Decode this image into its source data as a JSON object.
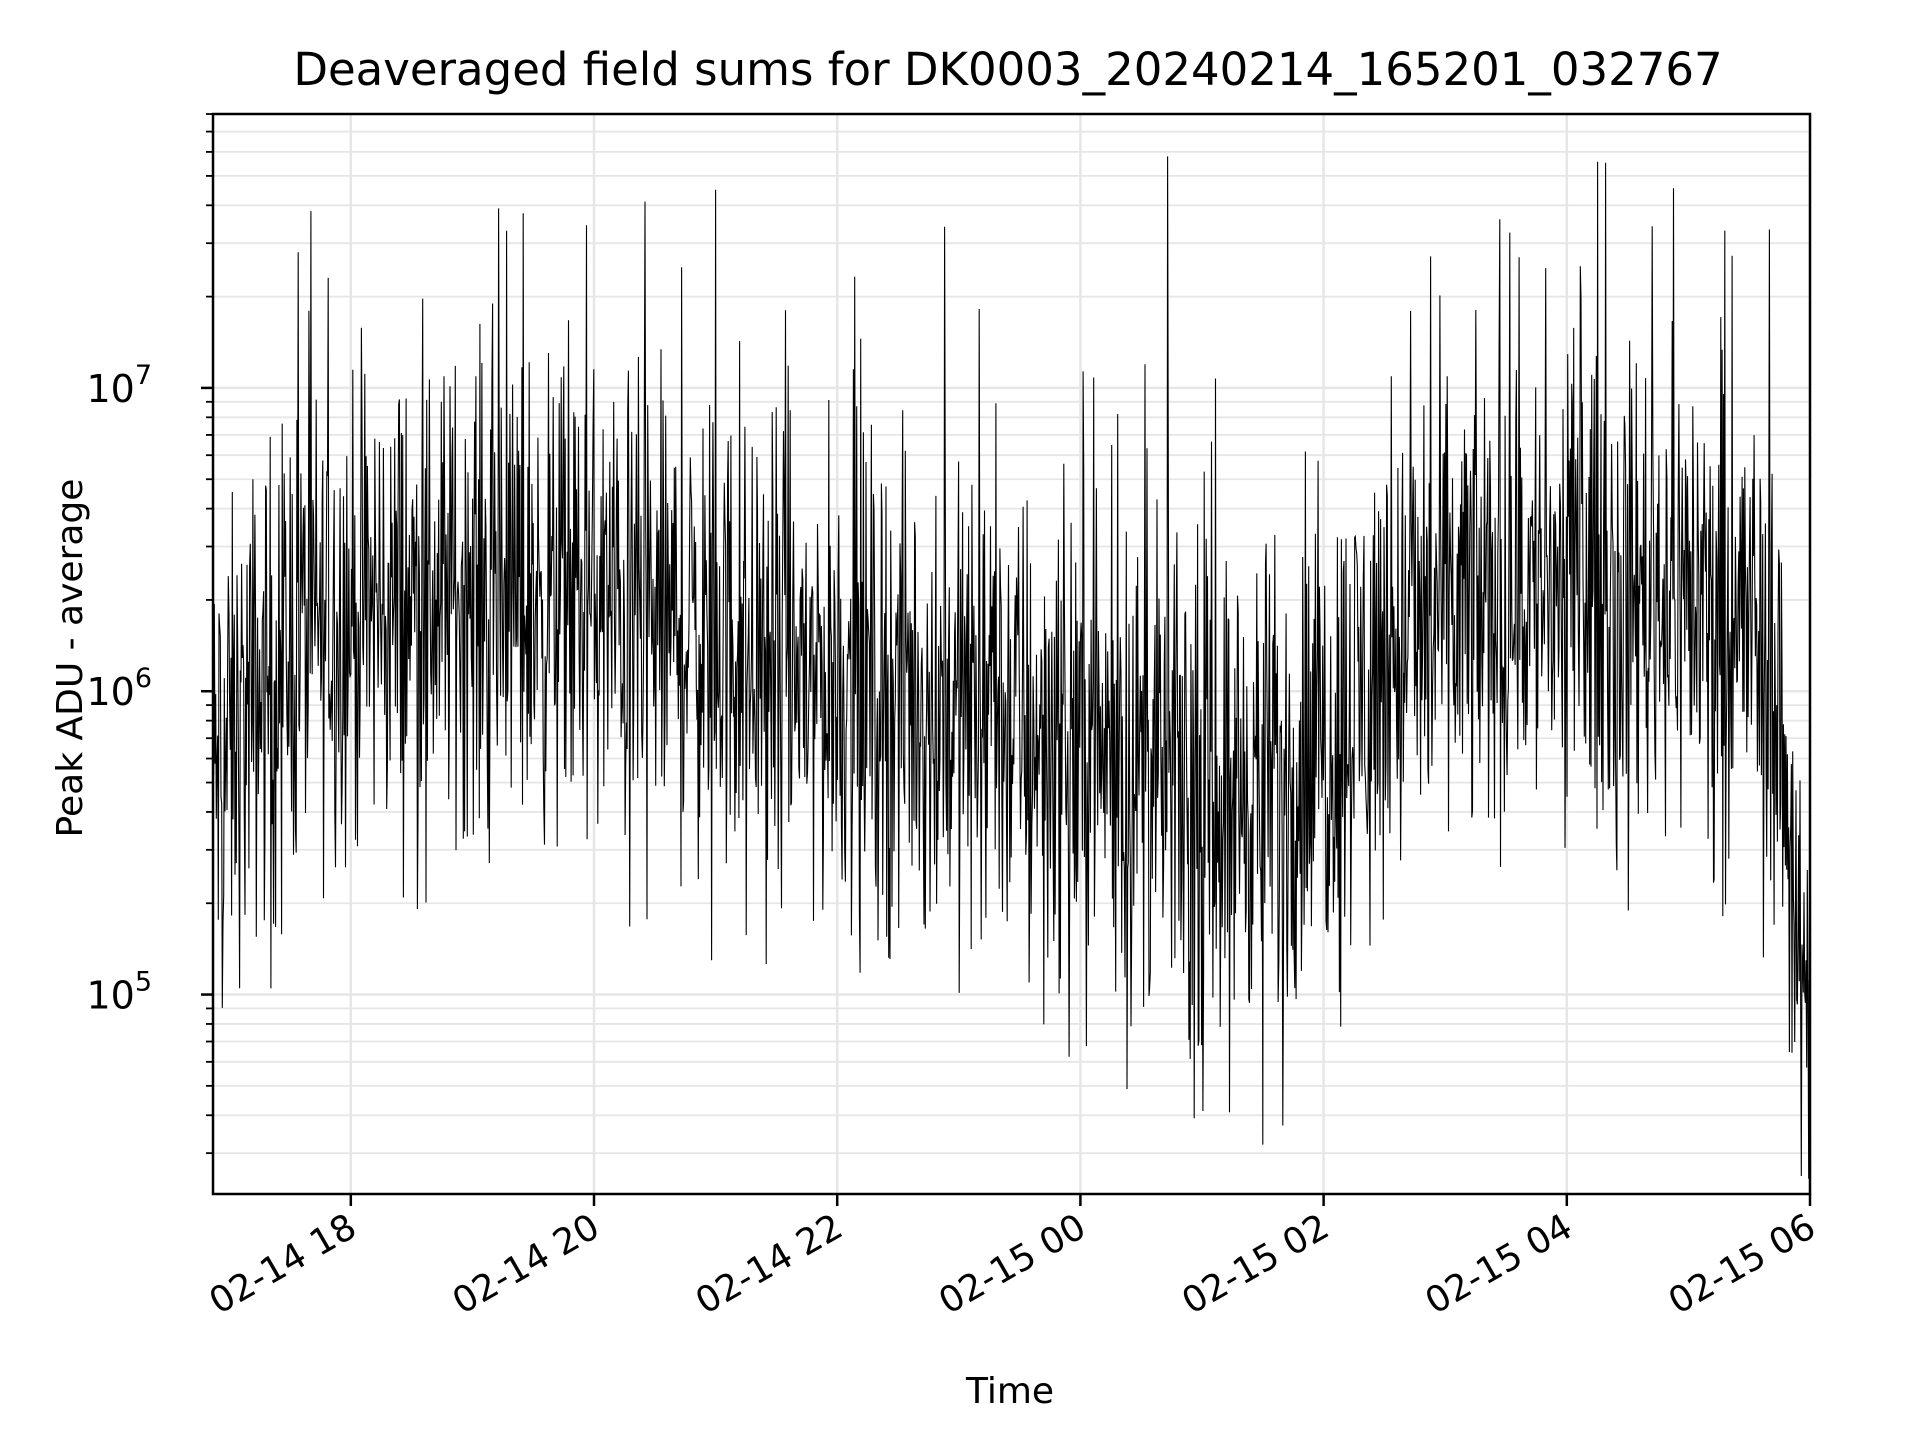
{
  "chart_data": {
    "type": "line",
    "title": "Deaveraged field sums for DK0003_20240214_165201_032767",
    "xlabel": "Time",
    "ylabel": "Peak ADU - average",
    "yscale": "log",
    "xlim": [
      "2024-02-14T16:52",
      "2024-02-15T06:00"
    ],
    "ylim": [
      22000,
      80000000
    ],
    "grid": true,
    "line_color": "#000000",
    "grid_color": "#e6e6e6",
    "x_ticks": [
      "02-14 18",
      "02-14 20",
      "02-14 22",
      "02-15 00",
      "02-15 02",
      "02-15 04",
      "02-15 06"
    ],
    "y_ticks": [
      {
        "base": "10",
        "exp": "5",
        "value": 100000
      },
      {
        "base": "10",
        "exp": "6",
        "value": 1000000
      },
      {
        "base": "10",
        "exp": "7",
        "value": 10000000
      }
    ],
    "series": [
      {
        "points_hint": "Dense noisy time series of roughly 2000 samples; median level by time below (x in hours since start, y in ADU)",
        "x": [
          "2024-02-14T16:52",
          "2024-02-14T17:30",
          "2024-02-14T18:00",
          "2024-02-14T19:00",
          "2024-02-14T20:00",
          "2024-02-14T21:00",
          "2024-02-14T22:00",
          "2024-02-14T23:00",
          "2024-02-15T00:00",
          "2024-02-15T01:00",
          "2024-02-15T01:50",
          "2024-02-15T02:30",
          "2024-02-15T03:00",
          "2024-02-15T04:00",
          "2024-02-15T05:00",
          "2024-02-15T05:40",
          "2024-02-15T05:55",
          "2024-02-15T06:00"
        ],
        "y": [
          500000,
          1500000,
          1800000,
          2200000,
          1900000,
          1500000,
          1100000,
          900000,
          700000,
          450000,
          550000,
          1300000,
          1800000,
          2300000,
          2200000,
          1500000,
          150000,
          40000
        ]
      }
    ],
    "spikes": [
      {
        "x": "2024-02-14T17:34",
        "y": 28000000
      },
      {
        "x": "2024-02-14T21:00",
        "y": 45000000
      },
      {
        "x": "2024-02-14T22:53",
        "y": 34000000
      },
      {
        "x": "2024-02-15T00:43",
        "y": 58000000
      },
      {
        "x": "2024-02-15T03:27",
        "y": 36000000
      },
      {
        "x": "2024-02-15T05:18",
        "y": 33000000
      },
      {
        "x": "2024-02-15T01:30",
        "y": 32000
      },
      {
        "x": "2024-02-15T01:40",
        "y": 37000
      }
    ]
  }
}
